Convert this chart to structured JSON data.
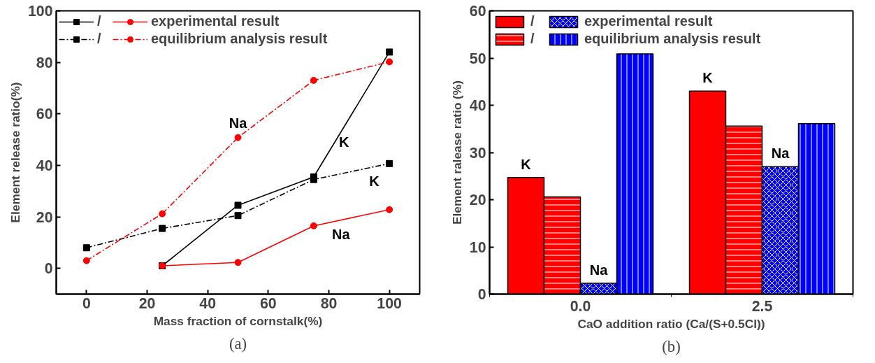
{
  "chart_data": [
    {
      "type": "line",
      "title": "(a)",
      "xlabel": "Mass fraction of cornstalk(%)",
      "ylabel": "Element release ratio(%)",
      "xlim": [
        -10,
        110
      ],
      "xticks": [
        0,
        20,
        40,
        60,
        80,
        100
      ],
      "ylim": [
        -10,
        100
      ],
      "yticks": [
        0,
        20,
        40,
        60,
        80,
        100
      ],
      "grid": false,
      "legend": "top left",
      "series": [
        {
          "name": "/",
          "color": "#000000",
          "marker": "square",
          "line_style": "solid",
          "x": [
            25,
            50,
            75,
            100
          ],
          "values": [
            1,
            24.5,
            35.5,
            84
          ]
        },
        {
          "name": "experimental result",
          "color": "#ff0000",
          "marker": "circle",
          "line_style": "solid",
          "x": [
            25,
            50,
            75,
            100
          ],
          "values": [
            1,
            2.3,
            16.5,
            22.8
          ]
        },
        {
          "name": "/",
          "color": "#000000",
          "marker": "square",
          "line_style": "dashed",
          "x": [
            0,
            25,
            50,
            75,
            100
          ],
          "values": [
            8,
            15.5,
            20.5,
            34.5,
            40.7
          ]
        },
        {
          "name": "equilibrium analysis result",
          "color": "#ff0000",
          "marker": "circle",
          "line_style": "dashed",
          "x": [
            0,
            25,
            50,
            75,
            100
          ],
          "values": [
            3,
            21.2,
            50.8,
            73,
            80.2
          ]
        }
      ],
      "annotations": [
        {
          "text": "Na",
          "x": 50,
          "y": 50.8
        },
        {
          "text": "K",
          "x": 85,
          "y": 54.9
        },
        {
          "text": "K",
          "x": 95,
          "y": 39.5
        },
        {
          "text": "Na",
          "x": 84,
          "y": 18.8
        }
      ]
    },
    {
      "type": "bar",
      "title": "(b)",
      "xlabel": "CaO addition ratio (Ca/(S+0.5Cl))",
      "ylabel": "Element ralease ratio (%)",
      "categories": [
        "0.0",
        "2.5"
      ],
      "ylim": [
        0,
        60
      ],
      "yticks": [
        0,
        10,
        20,
        30,
        40,
        50,
        60
      ],
      "grid": false,
      "legend": "top left",
      "series": [
        {
          "name": "/",
          "color": "#ff0000",
          "values": [
            24.7,
            43
          ]
        },
        {
          "name": "/",
          "color": "#ff0000",
          "values": [
            20.6,
            35.6
          ]
        },
        {
          "name": "experimental result",
          "color": "#0000ff",
          "values": [
            2.3,
            27
          ]
        },
        {
          "name": "equilibrium analysis result",
          "color": "#0000ff",
          "values": [
            50.9,
            36.1
          ]
        }
      ],
      "annotations": [
        "K",
        "Na",
        "K",
        "Na"
      ]
    }
  ]
}
